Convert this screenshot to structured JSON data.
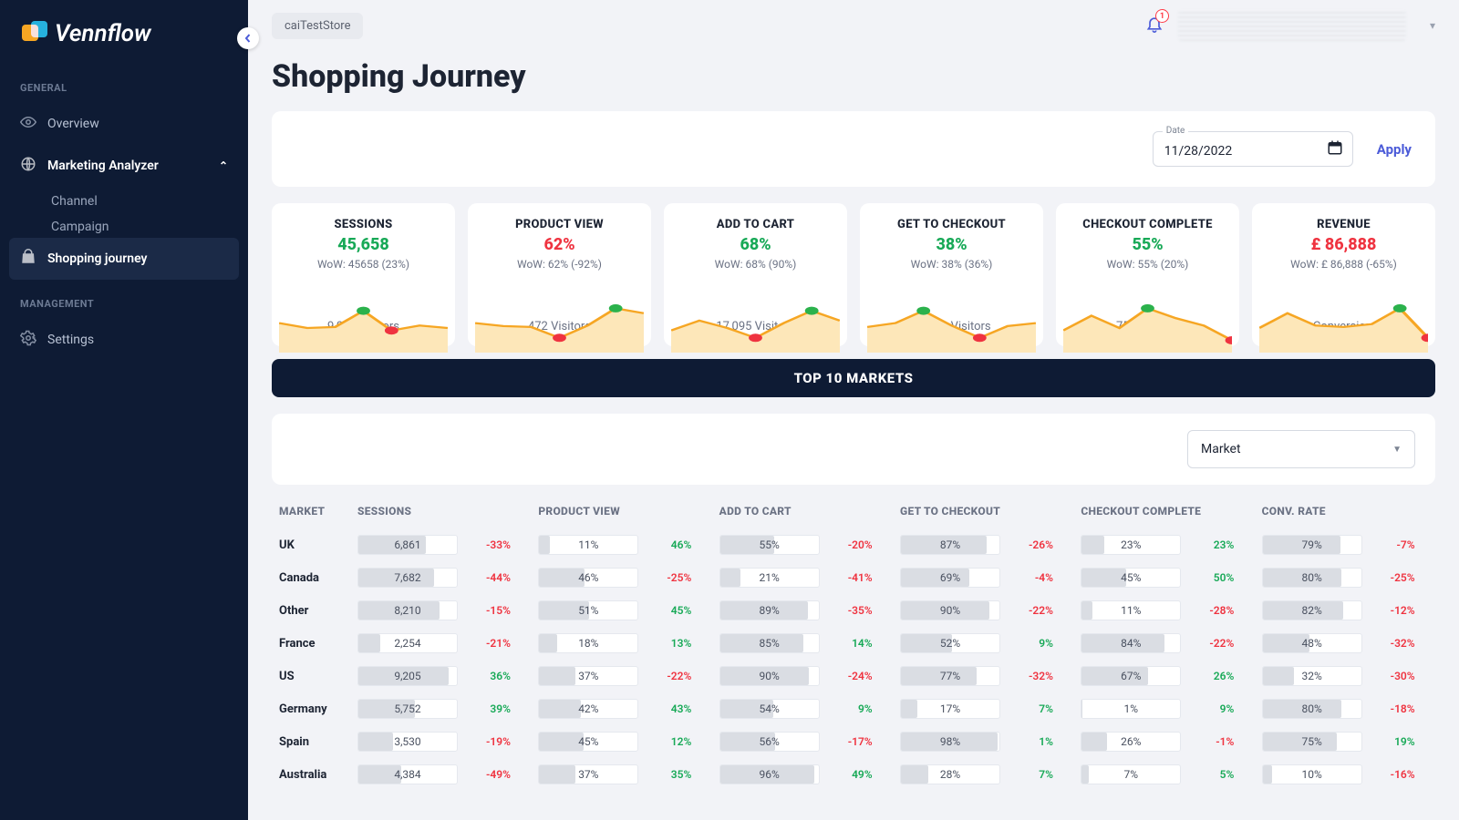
{
  "brand": "Vennflow",
  "store": "caiTestStore",
  "notification_count": "1",
  "page_title": "Shopping Journey",
  "sidebar": {
    "sections": [
      {
        "heading": "GENERAL",
        "items": [
          {
            "label": "Overview",
            "icon": "eye",
            "active": false
          },
          {
            "label": "Marketing Analyzer",
            "icon": "globe",
            "active": false,
            "expanded": true,
            "children": [
              {
                "label": "Channel"
              },
              {
                "label": "Campaign"
              }
            ]
          },
          {
            "label": "Shopping journey",
            "icon": "bag",
            "active": true
          }
        ]
      },
      {
        "heading": "MANAGEMENT",
        "items": [
          {
            "label": "Settings",
            "icon": "gear",
            "active": false
          }
        ]
      }
    ]
  },
  "date_filter": {
    "label": "Date",
    "value": "11/28/2022",
    "apply_label": "Apply"
  },
  "kpi_colors": {
    "line": "#f6a623",
    "fill": "#fde7b9",
    "high": "#2bb24c",
    "low": "#ef3340"
  },
  "kpis": [
    {
      "title": "SESSIONS",
      "value": "45,658",
      "value_color": "#18a957",
      "wow": "WoW: 45658 (23%)",
      "foot": "9,080 Visitors",
      "spark": {
        "points": [
          0.4,
          0.5,
          0.48,
          0.15,
          0.55,
          0.45,
          0.5
        ],
        "high_idx": 3,
        "low_idx": 4
      }
    },
    {
      "title": "PRODUCT VIEW",
      "value": "62%",
      "value_color": "#ef3340",
      "wow": "WoW: 62% (-92%)",
      "foot": "472 Visitors",
      "spark": {
        "points": [
          0.4,
          0.46,
          0.48,
          0.7,
          0.45,
          0.1,
          0.2
        ],
        "high_idx": 5,
        "low_idx": 3
      }
    },
    {
      "title": "ADD TO CART",
      "value": "68%",
      "value_color": "#18a957",
      "wow": "WoW: 68% (90%)",
      "foot": "17,095 Visitors",
      "spark": {
        "points": [
          0.55,
          0.35,
          0.5,
          0.7,
          0.4,
          0.15,
          0.35
        ],
        "high_idx": 5,
        "low_idx": 3
      }
    },
    {
      "title": "GET TO CHECKOUT",
      "value": "38%",
      "value_color": "#18a957",
      "wow": "WoW: 38% (36%)",
      "foot": "30,951 Visitors",
      "spark": {
        "points": [
          0.48,
          0.4,
          0.15,
          0.45,
          0.7,
          0.46,
          0.4
        ],
        "high_idx": 2,
        "low_idx": 4
      }
    },
    {
      "title": "CHECKOUT COMPLETE",
      "value": "55%",
      "value_color": "#18a957",
      "wow": "WoW: 55% (20%)",
      "foot": "756 Visitors",
      "spark": {
        "points": [
          0.55,
          0.25,
          0.5,
          0.1,
          0.3,
          0.45,
          0.75
        ],
        "high_idx": 3,
        "low_idx": 6
      }
    },
    {
      "title": "REVENUE",
      "value": "£ 86,888",
      "value_color": "#ef3340",
      "wow": "WoW: £ 86,888 (-65%)",
      "foot": "81% Conversion Rate",
      "spark": {
        "points": [
          0.5,
          0.2,
          0.45,
          0.48,
          0.42,
          0.1,
          0.7
        ],
        "high_idx": 5,
        "low_idx": 6
      }
    }
  ],
  "markets_header": "TOP 10 MARKETS",
  "market_select": {
    "label": "Market"
  },
  "table": {
    "columns": [
      "MARKET",
      "SESSIONS",
      "PRODUCT VIEW",
      "ADD TO CART",
      "GET TO CHECKOUT",
      "CHECKOUT COMPLETE",
      "CONV. RATE"
    ],
    "session_max": 10000,
    "rows": [
      {
        "market": "UK",
        "sessions": "6,861",
        "s_n": 6861,
        "s_d": "-33%",
        "pv": "11%",
        "pv_d": "46%",
        "atc": "55%",
        "atc_d": "-20%",
        "gc": "87%",
        "gc_d": "-26%",
        "cc": "23%",
        "cc_d": "23%",
        "cr": "79%",
        "cr_d": "-7%"
      },
      {
        "market": "Canada",
        "sessions": "7,682",
        "s_n": 7682,
        "s_d": "-44%",
        "pv": "46%",
        "pv_d": "-25%",
        "atc": "21%",
        "atc_d": "-41%",
        "gc": "69%",
        "gc_d": "-4%",
        "cc": "45%",
        "cc_d": "50%",
        "cr": "80%",
        "cr_d": "-25%"
      },
      {
        "market": "Other",
        "sessions": "8,210",
        "s_n": 8210,
        "s_d": "-15%",
        "pv": "51%",
        "pv_d": "45%",
        "atc": "89%",
        "atc_d": "-35%",
        "gc": "90%",
        "gc_d": "-22%",
        "cc": "11%",
        "cc_d": "-28%",
        "cr": "82%",
        "cr_d": "-12%"
      },
      {
        "market": "France",
        "sessions": "2,254",
        "s_n": 2254,
        "s_d": "-21%",
        "pv": "18%",
        "pv_d": "13%",
        "atc": "85%",
        "atc_d": "14%",
        "gc": "52%",
        "gc_d": "9%",
        "cc": "84%",
        "cc_d": "-22%",
        "cr": "48%",
        "cr_d": "-32%"
      },
      {
        "market": "US",
        "sessions": "9,205",
        "s_n": 9205,
        "s_d": "36%",
        "pv": "37%",
        "pv_d": "-22%",
        "atc": "90%",
        "atc_d": "-24%",
        "gc": "77%",
        "gc_d": "-32%",
        "cc": "67%",
        "cc_d": "26%",
        "cr": "32%",
        "cr_d": "-30%"
      },
      {
        "market": "Germany",
        "sessions": "5,752",
        "s_n": 5752,
        "s_d": "39%",
        "pv": "42%",
        "pv_d": "43%",
        "atc": "54%",
        "atc_d": "9%",
        "gc": "17%",
        "gc_d": "7%",
        "cc": "1%",
        "cc_d": "9%",
        "cr": "80%",
        "cr_d": "-18%"
      },
      {
        "market": "Spain",
        "sessions": "3,530",
        "s_n": 3530,
        "s_d": "-19%",
        "pv": "45%",
        "pv_d": "12%",
        "atc": "56%",
        "atc_d": "-17%",
        "gc": "98%",
        "gc_d": "1%",
        "cc": "26%",
        "cc_d": "-1%",
        "cr": "75%",
        "cr_d": "19%"
      },
      {
        "market": "Australia",
        "sessions": "4,384",
        "s_n": 4384,
        "s_d": "-49%",
        "pv": "37%",
        "pv_d": "35%",
        "atc": "96%",
        "atc_d": "49%",
        "gc": "28%",
        "gc_d": "7%",
        "cc": "7%",
        "cc_d": "5%",
        "cr": "10%",
        "cr_d": "-16%"
      }
    ]
  }
}
